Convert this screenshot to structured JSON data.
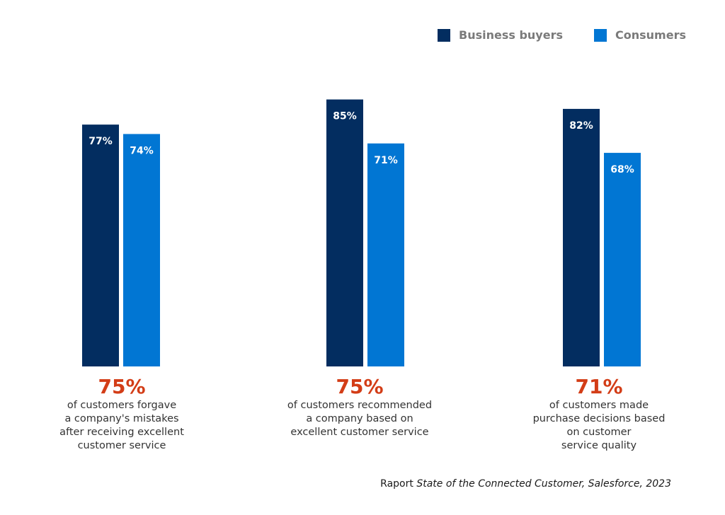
{
  "chart_data": {
    "type": "bar",
    "categories": [
      "forgave mistakes",
      "recommended company",
      "purchase decisions"
    ],
    "series": [
      {
        "name": "Business buyers",
        "color": "#032d60",
        "values": [
          77,
          85,
          82
        ],
        "labels": [
          "77%",
          "85%",
          "82%"
        ]
      },
      {
        "name": "Consumers",
        "color": "#0176d3",
        "values": [
          74,
          71,
          68
        ],
        "labels": [
          "74%",
          "71%",
          "68%"
        ]
      }
    ],
    "ylim": [
      0,
      100
    ],
    "title": "",
    "xlabel": "",
    "ylabel": "",
    "grid": false,
    "legend_position": "top-right"
  },
  "legend": {
    "business": "Business buyers",
    "consumers": "Consumers"
  },
  "groups": [
    {
      "stat": "75%",
      "lines": [
        "of customers forgave",
        "a company's mistakes",
        "after receiving excellent",
        "customer service"
      ]
    },
    {
      "stat": "75%",
      "lines": [
        "of customers recommended",
        "a company based on",
        "excellent customer service"
      ]
    },
    {
      "stat": "71%",
      "lines": [
        "of customers made",
        "purchase decisions based",
        "on customer",
        "service quality"
      ]
    }
  ],
  "source": {
    "prefix": "Raport ",
    "italic": "State of the Connected Customer, Salesforce, 2023"
  }
}
